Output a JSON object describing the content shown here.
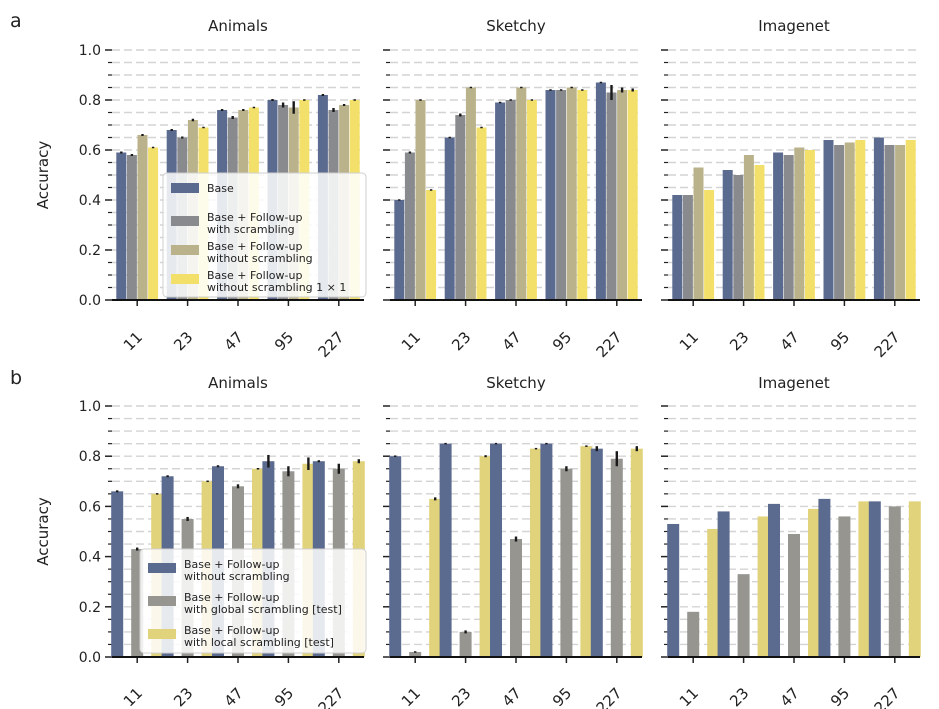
{
  "rows": [
    {
      "label": "a",
      "ylabel": "Accuracy",
      "legend": [
        {
          "label": "Base",
          "color": "#5b6a8f"
        },
        {
          "label": "Base + Follow-up\nwith scrambling",
          "color": "#888a8e"
        },
        {
          "label": "Base + Follow-up\nwithout scrambling",
          "color": "#bab28a"
        },
        {
          "label": "Base + Follow-up\nwithout scrambling 1 × 1",
          "color": "#f2e06a"
        }
      ]
    },
    {
      "label": "b",
      "ylabel": "Accuracy",
      "legend": [
        {
          "label": "Base + Follow-up\nwithout scrambling",
          "color": "#5b6a8f"
        },
        {
          "label": "Base + Follow-up\nwith global scrambling [test]",
          "color": "#969590"
        },
        {
          "label": "Base + Follow-up\nwith local scrambling [test]",
          "color": "#e1d27c"
        }
      ]
    }
  ],
  "chart_data": [
    {
      "type": "bar",
      "row": 0,
      "col": 0,
      "title": "Animals",
      "categories": [
        "11",
        "23",
        "47",
        "95",
        "227"
      ],
      "ylim": [
        0,
        1.0
      ],
      "yticks": [
        "0.0",
        "0.2",
        "0.4",
        "0.6",
        "0.8",
        "1.0"
      ],
      "series": [
        {
          "values": [
            0.59,
            0.68,
            0.76,
            0.8,
            0.82
          ],
          "errors": [
            0.004,
            0.004,
            0.004,
            0.004,
            0.004
          ]
        },
        {
          "values": [
            0.58,
            0.65,
            0.73,
            0.78,
            0.76
          ],
          "errors": [
            0.004,
            0.004,
            0.006,
            0.01,
            0.008
          ]
        },
        {
          "values": [
            0.66,
            0.72,
            0.76,
            0.77,
            0.78
          ],
          "errors": [
            0.004,
            0.005,
            0.004,
            0.025,
            0.004
          ]
        },
        {
          "values": [
            0.61,
            0.69,
            0.77,
            0.8,
            0.8
          ],
          "errors": [
            0.003,
            0.003,
            0.003,
            0.003,
            0.003
          ]
        }
      ]
    },
    {
      "type": "bar",
      "row": 0,
      "col": 1,
      "title": "Sketchy",
      "categories": [
        "11",
        "23",
        "47",
        "95",
        "227"
      ],
      "ylim": [
        0,
        1.0
      ],
      "series": [
        {
          "values": [
            0.4,
            0.65,
            0.79,
            0.84,
            0.87
          ],
          "errors": [
            0.003,
            0.003,
            0.003,
            0.003,
            0.003
          ]
        },
        {
          "values": [
            0.59,
            0.74,
            0.8,
            0.84,
            0.83
          ],
          "errors": [
            0.004,
            0.006,
            0.003,
            0.003,
            0.03
          ]
        },
        {
          "values": [
            0.8,
            0.85,
            0.85,
            0.85,
            0.84
          ],
          "errors": [
            0.003,
            0.003,
            0.003,
            0.003,
            0.01
          ]
        },
        {
          "values": [
            0.44,
            0.69,
            0.8,
            0.84,
            0.84
          ],
          "errors": [
            0.003,
            0.003,
            0.003,
            0.003,
            0.006
          ]
        }
      ]
    },
    {
      "type": "bar",
      "row": 0,
      "col": 2,
      "title": "Imagenet",
      "categories": [
        "11",
        "23",
        "47",
        "95",
        "227"
      ],
      "ylim": [
        0,
        1.0
      ],
      "series": [
        {
          "values": [
            0.42,
            0.52,
            0.59,
            0.64,
            0.65
          ],
          "errors": [
            0,
            0,
            0,
            0,
            0
          ]
        },
        {
          "values": [
            0.42,
            0.5,
            0.58,
            0.62,
            0.62
          ],
          "errors": [
            0,
            0,
            0,
            0,
            0
          ]
        },
        {
          "values": [
            0.53,
            0.58,
            0.61,
            0.63,
            0.62
          ],
          "errors": [
            0,
            0,
            0,
            0,
            0
          ]
        },
        {
          "values": [
            0.44,
            0.54,
            0.6,
            0.64,
            0.64
          ],
          "errors": [
            0,
            0,
            0,
            0,
            0
          ]
        }
      ]
    },
    {
      "type": "bar",
      "row": 1,
      "col": 0,
      "title": "Animals",
      "categories": [
        "11",
        "23",
        "47",
        "95",
        "227"
      ],
      "ylim": [
        0,
        1.0
      ],
      "yticks": [
        "0.0",
        "0.2",
        "0.4",
        "0.6",
        "0.8",
        "1.0"
      ],
      "series": [
        {
          "values": [
            0.66,
            0.72,
            0.76,
            0.78,
            0.78
          ],
          "errors": [
            0.004,
            0.004,
            0.004,
            0.025,
            0.004
          ]
        },
        {
          "values": [
            0.43,
            0.55,
            0.68,
            0.74,
            0.75
          ],
          "errors": [
            0.006,
            0.008,
            0.008,
            0.02,
            0.02
          ]
        },
        {
          "values": [
            0.65,
            0.7,
            0.75,
            0.77,
            0.78
          ],
          "errors": [
            0.003,
            0.003,
            0.003,
            0.025,
            0.008
          ]
        }
      ]
    },
    {
      "type": "bar",
      "row": 1,
      "col": 1,
      "title": "Sketchy",
      "categories": [
        "11",
        "23",
        "47",
        "95",
        "227"
      ],
      "ylim": [
        0,
        1.0
      ],
      "series": [
        {
          "values": [
            0.8,
            0.85,
            0.85,
            0.85,
            0.83
          ],
          "errors": [
            0.003,
            0.003,
            0.003,
            0.003,
            0.01
          ]
        },
        {
          "values": [
            0.02,
            0.1,
            0.47,
            0.75,
            0.79
          ],
          "errors": [
            0.003,
            0.006,
            0.01,
            0.01,
            0.03
          ]
        },
        {
          "values": [
            0.63,
            0.8,
            0.83,
            0.84,
            0.83
          ],
          "errors": [
            0.006,
            0.004,
            0.003,
            0.003,
            0.01
          ]
        }
      ]
    },
    {
      "type": "bar",
      "row": 1,
      "col": 2,
      "title": "Imagenet",
      "categories": [
        "11",
        "23",
        "47",
        "95",
        "227"
      ],
      "ylim": [
        0,
        1.0
      ],
      "series": [
        {
          "values": [
            0.53,
            0.58,
            0.61,
            0.63,
            0.62
          ],
          "errors": [
            0,
            0,
            0,
            0,
            0
          ]
        },
        {
          "values": [
            0.18,
            0.33,
            0.49,
            0.56,
            0.6
          ],
          "errors": [
            0,
            0,
            0,
            0,
            0
          ]
        },
        {
          "values": [
            0.51,
            0.56,
            0.59,
            0.62,
            0.62
          ],
          "errors": [
            0,
            0,
            0,
            0,
            0
          ]
        }
      ]
    }
  ]
}
